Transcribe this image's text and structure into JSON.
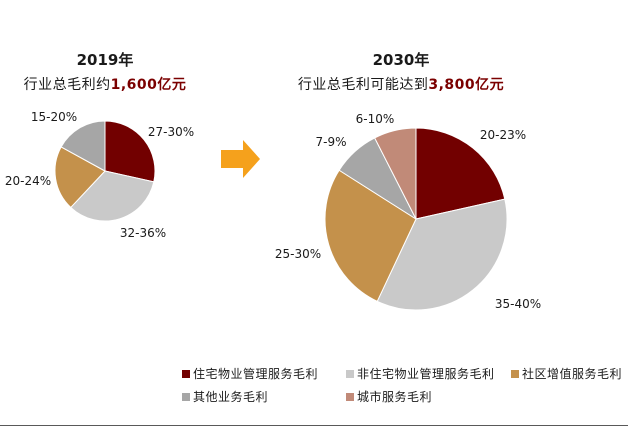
{
  "chart_data": [
    {
      "type": "pie",
      "title": "2019年",
      "subtitle": "行业总毛利约",
      "subtitle_highlight": "1,600亿元",
      "categories": [
        "住宅物业管理服务毛利",
        "非住宅物业管理服务毛利",
        "社区增值服务毛利",
        "其他业务毛利"
      ],
      "values": [
        28.5,
        33.5,
        21,
        17
      ],
      "data_labels": [
        "27-30%",
        "32-36%",
        "20-24%",
        "15-20%"
      ],
      "colors": [
        "#720000",
        "#C9C9C9",
        "#C4914B",
        "#A6A6A6"
      ]
    },
    {
      "type": "pie",
      "title": "2030年",
      "subtitle": "行业总毛利可能达到",
      "subtitle_highlight": "3,800亿元",
      "categories": [
        "住宅物业管理服务毛利",
        "非住宅物业管理服务毛利",
        "社区增值服务毛利",
        "其他业务毛利",
        "城市服务毛利"
      ],
      "values": [
        21.5,
        35.5,
        27,
        8.5,
        7.5
      ],
      "data_labels": [
        "20-23%",
        "35-40%",
        "25-30%",
        "7-9%",
        "6-10%"
      ],
      "colors": [
        "#720000",
        "#C9C9C9",
        "#C4914B",
        "#A6A6A6",
        "#C18A78"
      ]
    }
  ],
  "legend": {
    "position": "bottom",
    "entries": [
      {
        "name": "住宅物业管理服务毛利",
        "color": "#720000"
      },
      {
        "name": "非住宅物业管理服务毛利",
        "color": "#C9C9C9"
      },
      {
        "name": "社区增值服务毛利",
        "color": "#C4914B"
      },
      {
        "name": "其他业务毛利",
        "color": "#A6A6A6"
      },
      {
        "name": "城市服务毛利",
        "color": "#C18A78"
      }
    ]
  },
  "arrow": {
    "icon": "arrow-right-icon",
    "color": "#F5A11C"
  },
  "colors": {
    "highlight_text": "#7B0000",
    "rule": "#595959"
  }
}
